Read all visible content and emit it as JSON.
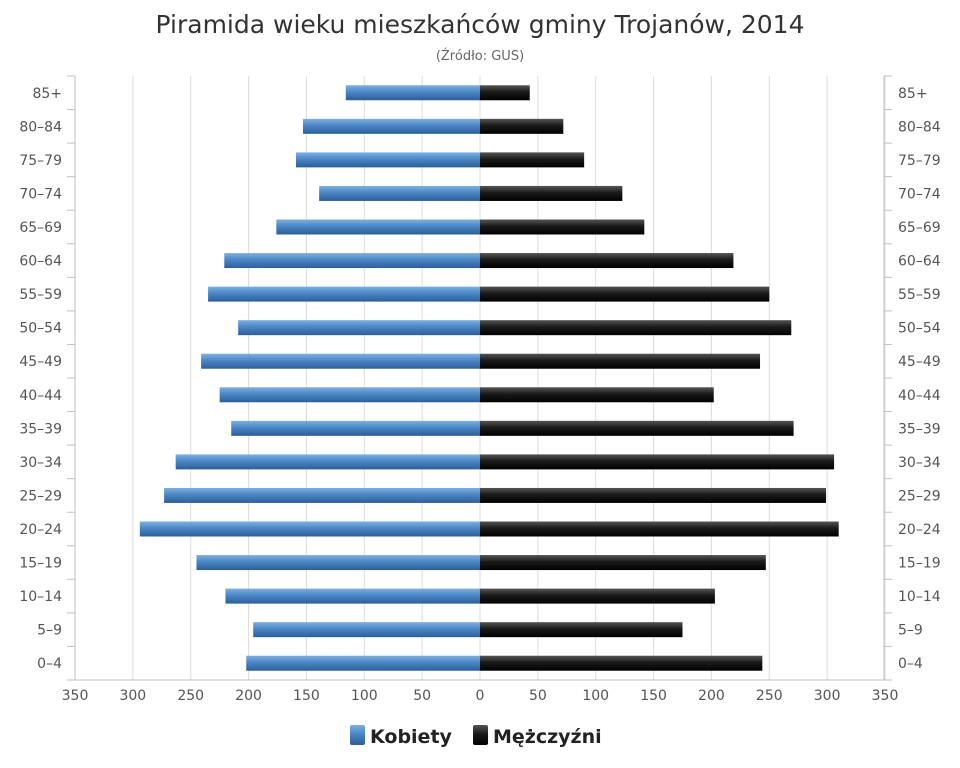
{
  "chart_data": {
    "type": "bar",
    "orientation": "horizontal",
    "layout": "population-pyramid",
    "title": "Piramida wieku mieszkańców gminy Trojanów, 2014",
    "subtitle": "(Źródło: GUS)",
    "categories": [
      "85+",
      "80–84",
      "75–79",
      "70–74",
      "65–69",
      "60–64",
      "55–59",
      "50–54",
      "45–49",
      "40–44",
      "35–39",
      "30–34",
      "25–29",
      "20–24",
      "15–19",
      "10–14",
      "5–9",
      "0–4"
    ],
    "series": [
      {
        "name": "Kobiety",
        "side": "left",
        "color": "#4a86c5",
        "values": [
          116,
          153,
          159,
          139,
          176,
          221,
          235,
          209,
          241,
          225,
          215,
          263,
          273,
          294,
          245,
          220,
          196,
          202
        ]
      },
      {
        "name": "Mężczyźni",
        "side": "right",
        "color": "#1a1a1a",
        "values": [
          43,
          72,
          90,
          123,
          142,
          219,
          250,
          269,
          242,
          202,
          271,
          306,
          299,
          310,
          247,
          203,
          175,
          244
        ]
      }
    ],
    "xlim": [
      -350,
      350
    ],
    "xticks": [
      350,
      300,
      250,
      200,
      150,
      100,
      50,
      0,
      50,
      100,
      150,
      200,
      250,
      300,
      350
    ],
    "grid": true,
    "legend": "bottom-center"
  }
}
